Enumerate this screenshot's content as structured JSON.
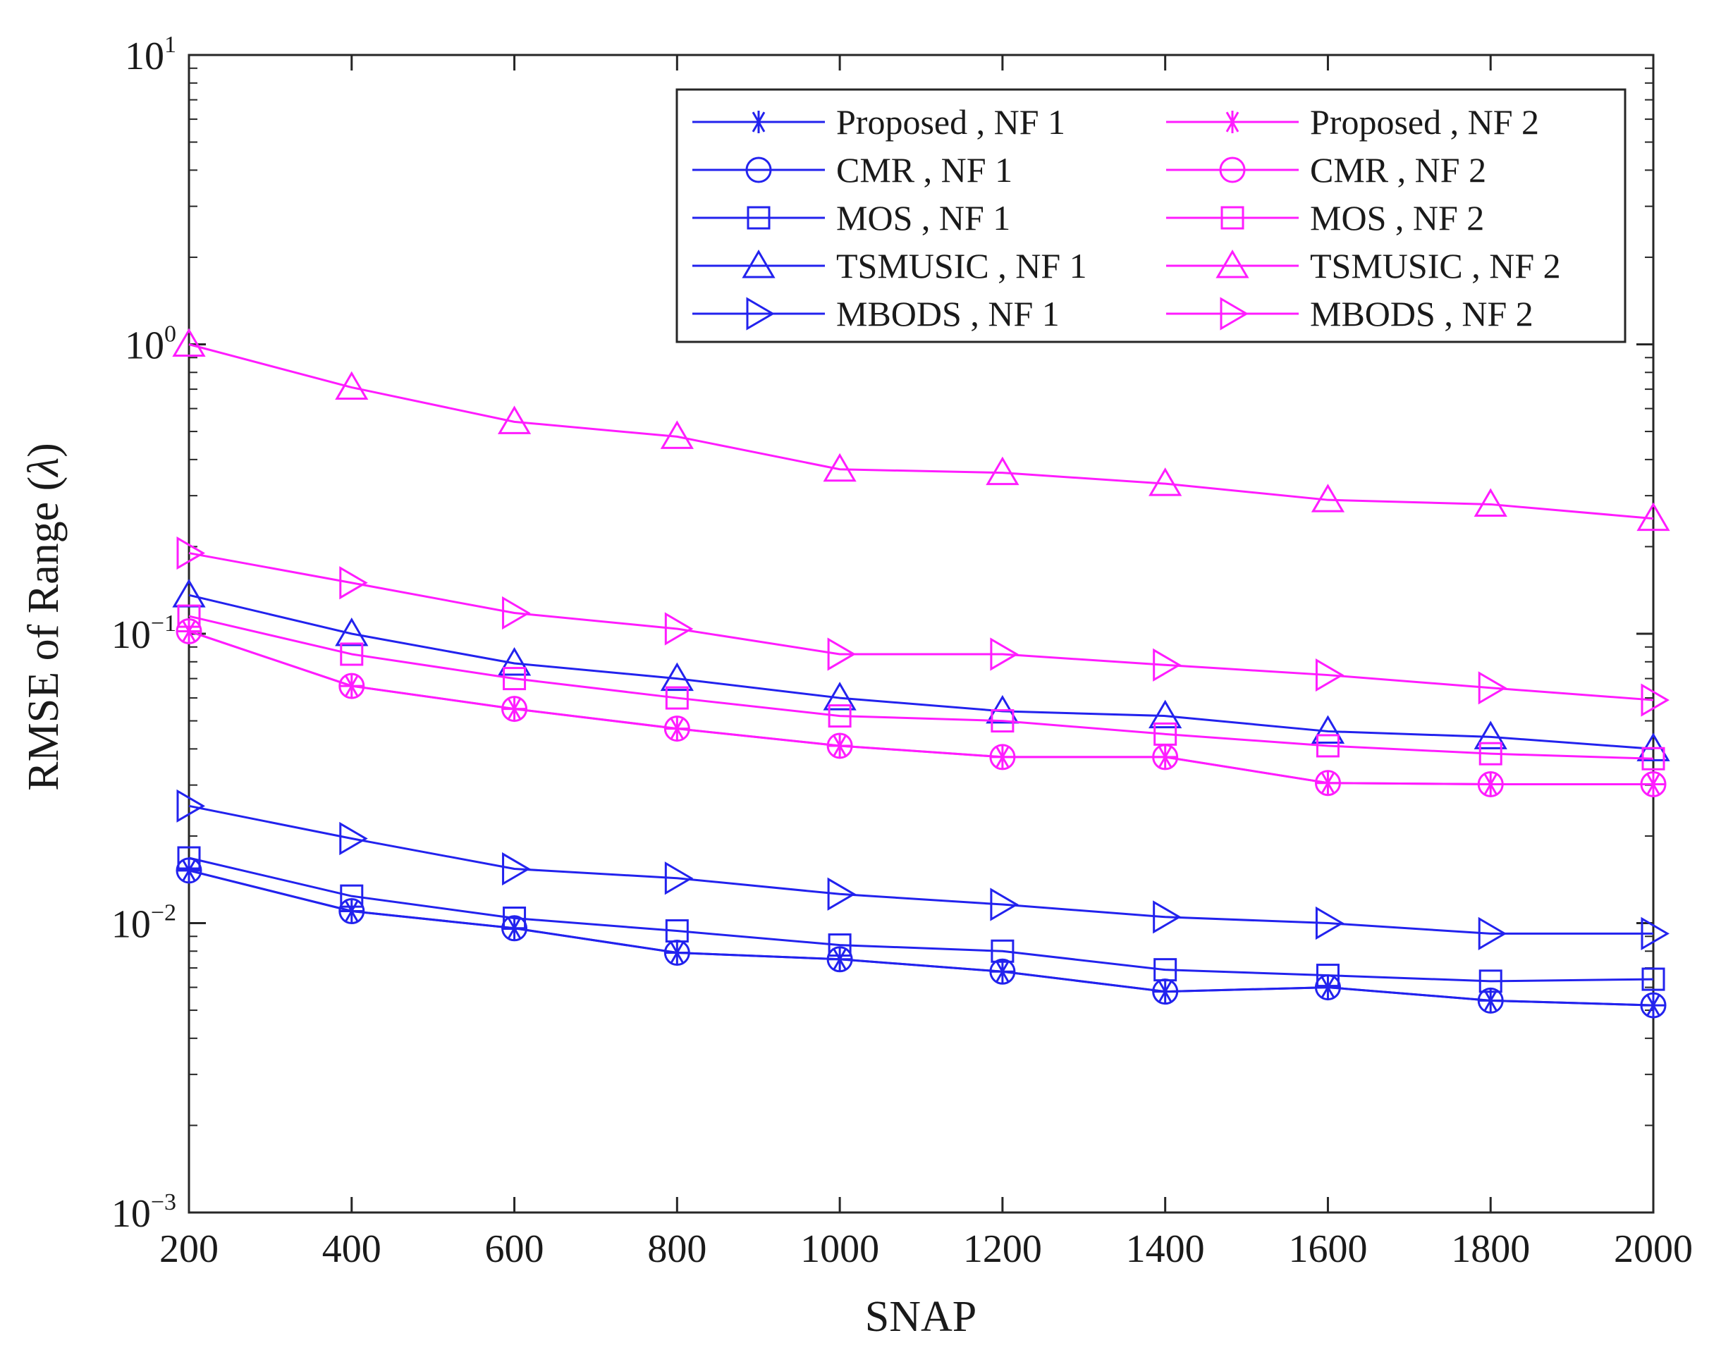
{
  "chart_data": {
    "type": "line",
    "title": "",
    "xlabel": "SNAP",
    "ylabel_main": "RMSE  of  Range (",
    "ylabel_symbol": "λ",
    "ylabel_close": ")",
    "yscale": "log",
    "xlim": [
      200,
      2000
    ],
    "ylim": [
      0.001,
      10
    ],
    "x": [
      200,
      400,
      600,
      800,
      1000,
      1200,
      1400,
      1600,
      1800,
      2000
    ],
    "x_tick_labels": [
      "200",
      "400",
      "600",
      "800",
      "1000",
      "1200",
      "1400",
      "1600",
      "1800",
      "2000"
    ],
    "y_tick_labels": [
      {
        "value": 0.001,
        "base": "10",
        "exp": "−3"
      },
      {
        "value": 0.01,
        "base": "10",
        "exp": "−2"
      },
      {
        "value": 0.1,
        "base": "10",
        "exp": "−1"
      },
      {
        "value": 1,
        "base": "10",
        "exp": "0"
      },
      {
        "value": 10,
        "base": "10",
        "exp": "1"
      }
    ],
    "legend_position": "top-right",
    "colors": {
      "nf1": "#2222ee",
      "nf2": "#ff1cff",
      "axis": "#262626"
    },
    "series": [
      {
        "name": "Proposed , NF 1",
        "color": "#2222ee",
        "marker": "asterisk",
        "values": [
          0.0152,
          0.011,
          0.0096,
          0.0079,
          0.0075,
          0.0068,
          0.0058,
          0.006,
          0.0054,
          0.0052
        ]
      },
      {
        "name": "CMR , NF 1",
        "color": "#2222ee",
        "marker": "circle",
        "values": [
          0.0152,
          0.011,
          0.0096,
          0.0079,
          0.0075,
          0.0068,
          0.0058,
          0.006,
          0.0054,
          0.0052
        ]
      },
      {
        "name": "MOS , NF 1",
        "color": "#2222ee",
        "marker": "square",
        "values": [
          0.0168,
          0.0124,
          0.0104,
          0.0094,
          0.0084,
          0.008,
          0.0069,
          0.0066,
          0.0063,
          0.0064
        ]
      },
      {
        "name": "TSMUSIC , NF 1",
        "color": "#2222ee",
        "marker": "triangle-up",
        "values": [
          0.136,
          0.1,
          0.079,
          0.07,
          0.06,
          0.054,
          0.052,
          0.046,
          0.044,
          0.04
        ]
      },
      {
        "name": "MBODS , NF 1",
        "color": "#2222ee",
        "marker": "triangle-right",
        "values": [
          0.0254,
          0.0196,
          0.0154,
          0.0143,
          0.0126,
          0.0116,
          0.0105,
          0.01,
          0.0092,
          0.0092
        ]
      },
      {
        "name": "Proposed , NF 2",
        "color": "#ff1cff",
        "marker": "asterisk",
        "values": [
          0.102,
          0.066,
          0.055,
          0.047,
          0.041,
          0.0375,
          0.0375,
          0.0305,
          0.0302,
          0.0302
        ]
      },
      {
        "name": "CMR , NF 2",
        "color": "#ff1cff",
        "marker": "circle",
        "values": [
          0.102,
          0.066,
          0.055,
          0.047,
          0.041,
          0.0375,
          0.0375,
          0.0305,
          0.0302,
          0.0302
        ]
      },
      {
        "name": "MOS , NF 2",
        "color": "#ff1cff",
        "marker": "square",
        "values": [
          0.115,
          0.085,
          0.07,
          0.06,
          0.052,
          0.05,
          0.045,
          0.041,
          0.0385,
          0.037
        ]
      },
      {
        "name": "TSMUSIC , NF 2",
        "color": "#ff1cff",
        "marker": "triangle-up",
        "values": [
          1.0,
          0.71,
          0.54,
          0.48,
          0.37,
          0.36,
          0.33,
          0.29,
          0.28,
          0.25
        ]
      },
      {
        "name": "MBODS , NF 2",
        "color": "#ff1cff",
        "marker": "triangle-right",
        "values": [
          0.19,
          0.15,
          0.118,
          0.104,
          0.085,
          0.085,
          0.078,
          0.072,
          0.065,
          0.059
        ]
      }
    ]
  }
}
